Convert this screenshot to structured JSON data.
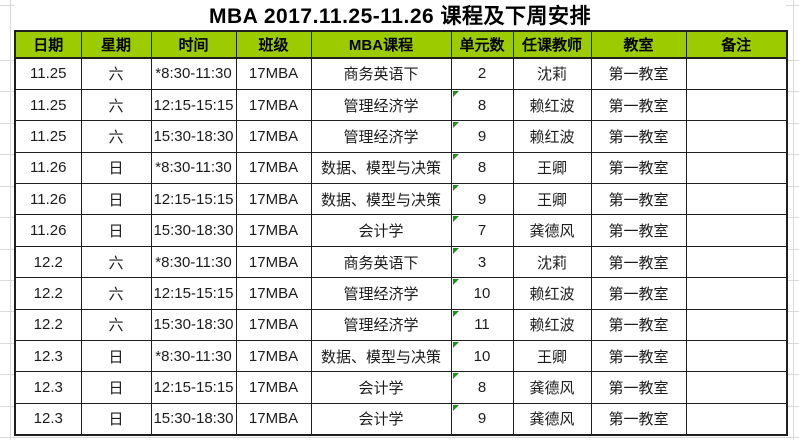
{
  "title": "MBA 2017.11.25-11.26 课程及下周安排",
  "colors": {
    "header_bg": "#9CCB00",
    "border": "#1f1f1f",
    "text": "#1c1c1c",
    "gridline": "#d9d9d9",
    "triangle": "#1e8f1e"
  },
  "table": {
    "columns": [
      "日期",
      "星期",
      "时间",
      "班级",
      "MBA课程",
      "单元数",
      "任课教师",
      "教室",
      "备注"
    ],
    "rows": [
      {
        "date": "11.25",
        "weekday": "六",
        "time": "*8:30-11:30",
        "class": "17MBA",
        "course": "商务英语下",
        "units": "2",
        "teacher": "沈莉",
        "room": "第一教室",
        "note": "",
        "indicator": false,
        "group_start": false
      },
      {
        "date": "11.25",
        "weekday": "六",
        "time": "12:15-15:15",
        "class": "17MBA",
        "course": "管理经济学",
        "units": "8",
        "teacher": "赖红波",
        "room": "第一教室",
        "note": "",
        "indicator": true,
        "group_start": false
      },
      {
        "date": "11.25",
        "weekday": "六",
        "time": "15:30-18:30",
        "class": "17MBA",
        "course": "管理经济学",
        "units": "9",
        "teacher": "赖红波",
        "room": "第一教室",
        "note": "",
        "indicator": true,
        "group_start": false
      },
      {
        "date": "11.26",
        "weekday": "日",
        "time": "*8:30-11:30",
        "class": "17MBA",
        "course": "数据、模型与决策",
        "units": "8",
        "teacher": "王卿",
        "room": "第一教室",
        "note": "",
        "indicator": true,
        "group_start": true
      },
      {
        "date": "11.26",
        "weekday": "日",
        "time": "12:15-15:15",
        "class": "17MBA",
        "course": "数据、模型与决策",
        "units": "9",
        "teacher": "王卿",
        "room": "第一教室",
        "note": "",
        "indicator": true,
        "group_start": false
      },
      {
        "date": "11.26",
        "weekday": "日",
        "time": "15:30-18:30",
        "class": "17MBA",
        "course": "会计学",
        "units": "7",
        "teacher": "龚德风",
        "room": "第一教室",
        "note": "",
        "indicator": true,
        "group_start": false
      },
      {
        "date": "12.2",
        "weekday": "六",
        "time": "*8:30-11:30",
        "class": "17MBA",
        "course": "商务英语下",
        "units": "3",
        "teacher": "沈莉",
        "room": "第一教室",
        "note": "",
        "indicator": true,
        "group_start": true
      },
      {
        "date": "12.2",
        "weekday": "六",
        "time": "12:15-15:15",
        "class": "17MBA",
        "course": "管理经济学",
        "units": "10",
        "teacher": "赖红波",
        "room": "第一教室",
        "note": "",
        "indicator": true,
        "group_start": false
      },
      {
        "date": "12.2",
        "weekday": "六",
        "time": "15:30-18:30",
        "class": "17MBA",
        "course": "管理经济学",
        "units": "11",
        "teacher": "赖红波",
        "room": "第一教室",
        "note": "",
        "indicator": true,
        "group_start": false
      },
      {
        "date": "12.3",
        "weekday": "日",
        "time": "*8:30-11:30",
        "class": "17MBA",
        "course": "数据、模型与决策",
        "units": "10",
        "teacher": "王卿",
        "room": "第一教室",
        "note": "",
        "indicator": true,
        "group_start": true
      },
      {
        "date": "12.3",
        "weekday": "日",
        "time": "12:15-15:15",
        "class": "17MBA",
        "course": "会计学",
        "units": "8",
        "teacher": "龚德风",
        "room": "第一教室",
        "note": "",
        "indicator": true,
        "group_start": false
      },
      {
        "date": "12.3",
        "weekday": "日",
        "time": "15:30-18:30",
        "class": "17MBA",
        "course": "会计学",
        "units": "9",
        "teacher": "龚德风",
        "room": "第一教室",
        "note": "",
        "indicator": true,
        "group_start": false
      }
    ]
  }
}
